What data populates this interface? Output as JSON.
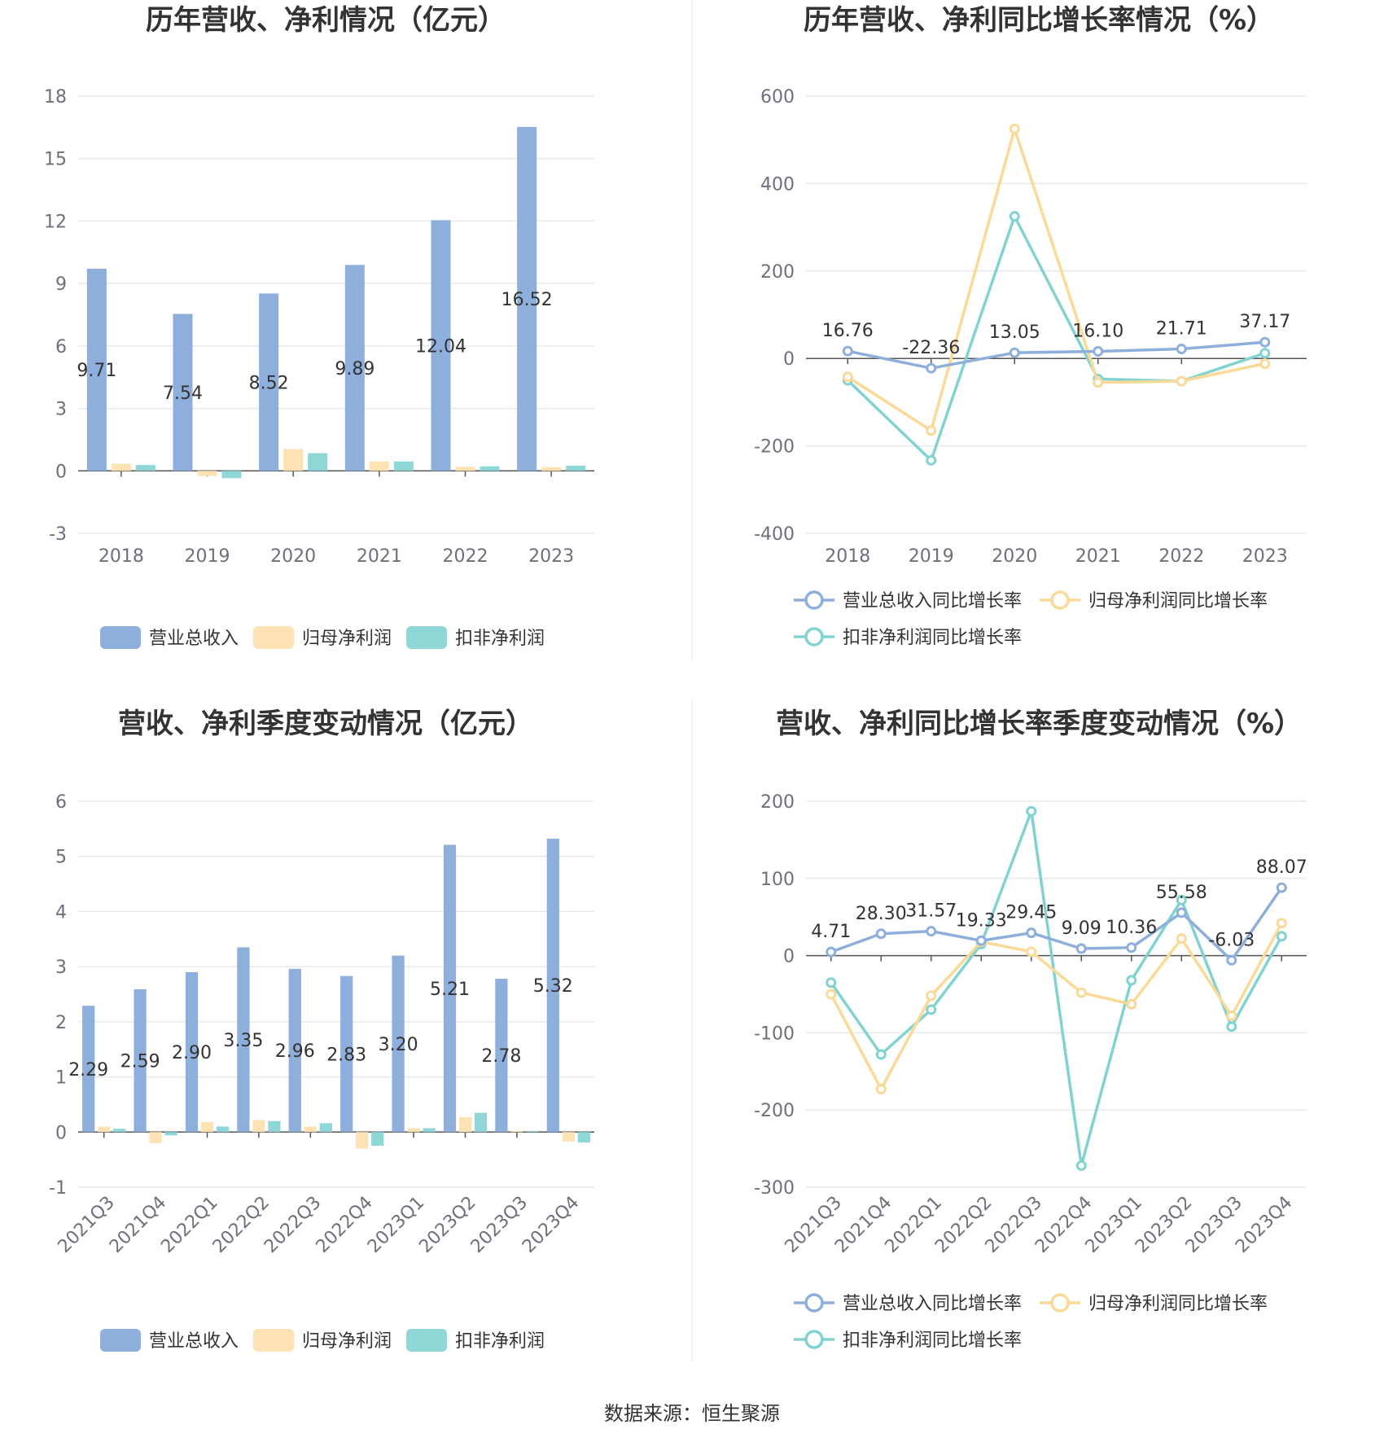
{
  "colors": {
    "revenue": "#8eaedb",
    "net_profit": "#fde3b4",
    "deducted_profit": "#8fd6d6",
    "revenue_line": "#8eaedb",
    "net_line": "#fbd996",
    "deducted_line": "#82d2d2",
    "grid": "#e6e8ef",
    "axis": "#555555"
  },
  "source": "数据来源：恒生聚源",
  "chart_data": [
    {
      "type": "bar",
      "title": "历年营收、净利情况（亿元）",
      "categories": [
        "2018",
        "2019",
        "2020",
        "2021",
        "2022",
        "2023"
      ],
      "ylim": [
        -3,
        18
      ],
      "yticks": [
        -3,
        0,
        3,
        6,
        9,
        12,
        15,
        18
      ],
      "series": [
        {
          "name": "营业总收入",
          "values": [
            9.71,
            7.54,
            8.52,
            9.89,
            12.04,
            16.52
          ],
          "labels": [
            "9.71",
            "7.54",
            "8.52",
            "9.89",
            "12.04",
            "16.52"
          ]
        },
        {
          "name": "归母净利润",
          "values": [
            0.35,
            -0.25,
            1.05,
            0.45,
            0.2,
            0.18
          ]
        },
        {
          "name": "扣非净利润",
          "values": [
            0.28,
            -0.35,
            0.85,
            0.45,
            0.22,
            0.25
          ]
        }
      ],
      "legend": [
        "营业总收入",
        "归母净利润",
        "扣非净利润"
      ]
    },
    {
      "type": "line",
      "title": "历年营收、净利同比增长率情况（%）",
      "categories": [
        "2018",
        "2019",
        "2020",
        "2021",
        "2022",
        "2023"
      ],
      "ylim": [
        -400,
        600
      ],
      "yticks": [
        -400,
        -200,
        0,
        200,
        400,
        600
      ],
      "series": [
        {
          "name": "营业总收入同比增长率",
          "values": [
            16.76,
            -22.36,
            13.05,
            16.1,
            21.71,
            37.17
          ],
          "labels": [
            "16.76",
            "-22.36",
            "13.05",
            "16.10",
            "21.71",
            "37.17"
          ]
        },
        {
          "name": "归母净利润同比增长率",
          "values": [
            -42,
            -165,
            525,
            -55,
            -52,
            -12
          ]
        },
        {
          "name": "扣非净利润同比增长率",
          "values": [
            -50,
            -233,
            325,
            -47,
            -52,
            12
          ]
        }
      ],
      "legend": [
        "营业总收入同比增长率",
        "归母净利润同比增长率",
        "扣非净利润同比增长率"
      ]
    },
    {
      "type": "bar",
      "title": "营收、净利季度变动情况（亿元）",
      "categories": [
        "2021Q3",
        "2021Q4",
        "2022Q1",
        "2022Q2",
        "2022Q3",
        "2022Q4",
        "2023Q1",
        "2023Q2",
        "2023Q3",
        "2023Q4"
      ],
      "ylim": [
        -1,
        6
      ],
      "yticks": [
        -1,
        0,
        1,
        2,
        3,
        4,
        5,
        6
      ],
      "series": [
        {
          "name": "营业总收入",
          "values": [
            2.29,
            2.59,
            2.9,
            3.35,
            2.96,
            2.83,
            3.2,
            5.21,
            2.78,
            5.32
          ],
          "labels": [
            "2.29",
            "2.59",
            "2.90",
            "3.35",
            "2.96",
            "2.83",
            "3.20",
            "5.21",
            "2.78",
            "5.32"
          ]
        },
        {
          "name": "归母净利润",
          "values": [
            0.1,
            -0.2,
            0.18,
            0.22,
            0.1,
            -0.3,
            0.07,
            0.27,
            0.02,
            -0.17
          ]
        },
        {
          "name": "扣非净利润",
          "values": [
            0.06,
            -0.06,
            0.1,
            0.2,
            0.16,
            -0.25,
            0.07,
            0.35,
            0.02,
            -0.19
          ]
        }
      ],
      "legend": [
        "营业总收入",
        "归母净利润",
        "扣非净利润"
      ]
    },
    {
      "type": "line",
      "title": "营收、净利同比增长率季度变动情况（%）",
      "categories": [
        "2021Q3",
        "2021Q4",
        "2022Q1",
        "2022Q2",
        "2022Q3",
        "2022Q4",
        "2023Q1",
        "2023Q2",
        "2023Q3",
        "2023Q4"
      ],
      "ylim": [
        -300,
        200
      ],
      "yticks": [
        -300,
        -200,
        -100,
        0,
        100,
        200
      ],
      "series": [
        {
          "name": "营业总收入同比增长率",
          "values": [
            4.71,
            28.3,
            31.57,
            19.33,
            29.45,
            9.09,
            10.36,
            55.58,
            -6.03,
            88.07
          ],
          "labels": [
            "4.71",
            "28.30",
            "31.57",
            "19.33",
            "29.45",
            "9.09",
            "10.36",
            "55.58",
            "-6.03",
            "88.07"
          ]
        },
        {
          "name": "归母净利润同比增长率",
          "values": [
            -50,
            -173,
            -52,
            18,
            5,
            -48,
            -63,
            22,
            -78,
            42
          ]
        },
        {
          "name": "扣非净利润同比增长率",
          "values": [
            -35,
            -128,
            -70,
            15,
            187,
            -272,
            -32,
            72,
            -92,
            25
          ]
        }
      ],
      "legend": [
        "营业总收入同比增长率",
        "归母净利润同比增长率",
        "扣非净利润同比增长率"
      ]
    }
  ]
}
